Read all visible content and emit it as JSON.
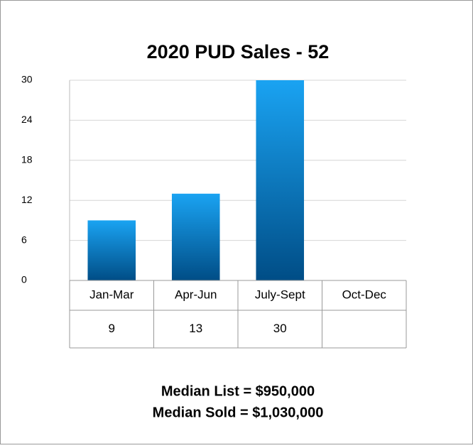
{
  "chart_data": {
    "type": "bar",
    "title": "2020 PUD Sales - 52",
    "categories": [
      "Jan-Mar",
      "Apr-Jun",
      "July-Sept",
      "Oct-Dec"
    ],
    "values": [
      9,
      13,
      30,
      null
    ],
    "color": "#0a7fcc",
    "ylim": [
      0,
      30
    ],
    "yticks": [
      0,
      6,
      12,
      18,
      24,
      30
    ],
    "grid": true,
    "notes": [
      "Median List = $950,000",
      "Median Sold = $1,030,000"
    ]
  }
}
